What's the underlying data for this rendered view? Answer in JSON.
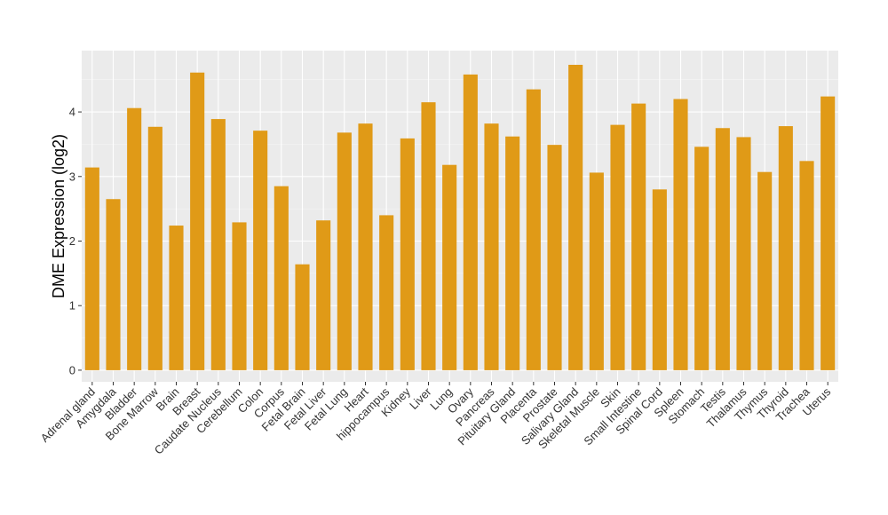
{
  "chart_data": {
    "type": "bar",
    "title": "",
    "xlabel": "",
    "ylabel": "DME Expression (log2)",
    "ylim": [
      -0.18,
      4.95
    ],
    "yticks": [
      0,
      1,
      2,
      3,
      4
    ],
    "grid": true,
    "legend": "none",
    "bar_color": "#E09A17",
    "panel_color": "#EBEBEB",
    "categories": [
      "Adrenal gland",
      "Amygdala",
      "Bladder",
      "Bone Marrow",
      "Brain",
      "Breast",
      "Caudate Nucleus",
      "Cerebellum",
      "Colon",
      "Corpus",
      "Fetal Brain",
      "Fetal Liver",
      "Fetal Lung",
      "Heart",
      "hippocampus",
      "Kidney",
      "Liver",
      "Lung",
      "Ovary",
      "Pancreas",
      "Pituitary Gland",
      "Placenta",
      "Prostate",
      "Salivary Gland",
      "Skeletal Muscle",
      "Skin",
      "Small Intestine",
      "Spinal Cord",
      "Spleen",
      "Stomach",
      "Testis",
      "Thalamus",
      "Thymus",
      "Thyroid",
      "Trachea",
      "Uterus"
    ],
    "values": [
      3.14,
      2.65,
      4.06,
      3.77,
      2.24,
      4.61,
      3.89,
      2.29,
      3.71,
      2.85,
      1.64,
      2.32,
      3.68,
      3.82,
      2.4,
      3.59,
      4.15,
      3.18,
      4.58,
      3.82,
      3.62,
      4.35,
      3.49,
      4.73,
      3.06,
      3.8,
      4.13,
      2.8,
      4.2,
      3.46,
      3.75,
      3.61,
      3.07,
      3.78,
      3.24,
      4.24
    ]
  }
}
